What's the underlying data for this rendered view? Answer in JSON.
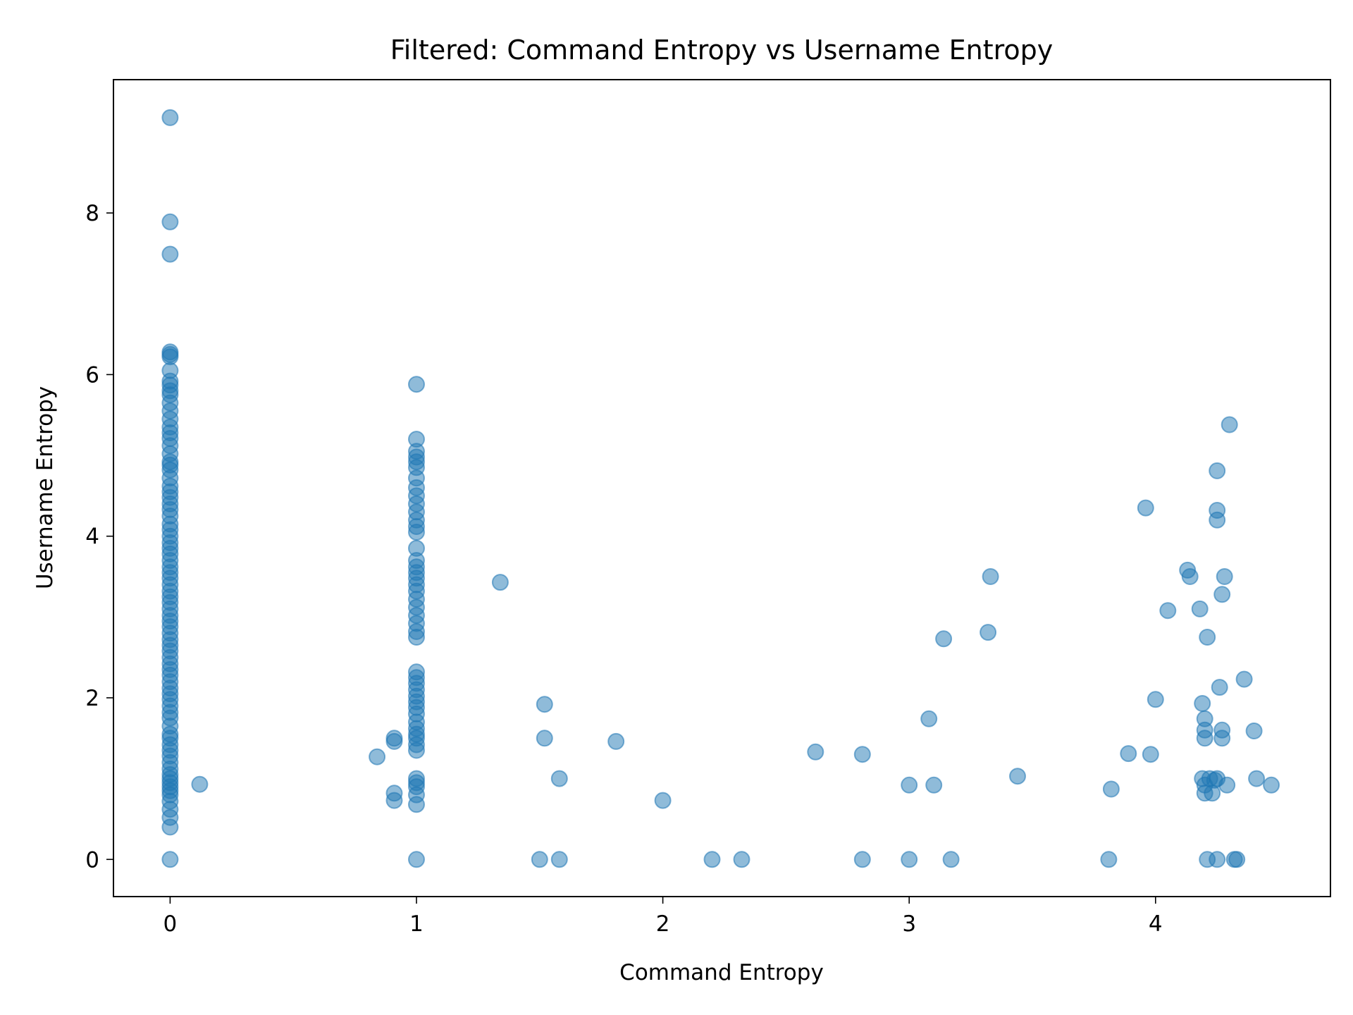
{
  "chart_data": {
    "type": "scatter",
    "title": "Filtered: Command Entropy vs Username Entropy",
    "xlabel": "Command Entropy",
    "ylabel": "Username Entropy",
    "xlim": [
      -0.23,
      4.71
    ],
    "ylim": [
      -0.46,
      9.65
    ],
    "xticks": [
      0,
      1,
      2,
      3,
      4
    ],
    "yticks": [
      0,
      2,
      4,
      6,
      8
    ],
    "grid": false,
    "marker_color": "#1f77b4",
    "marker_alpha": 0.5,
    "series": [
      {
        "points": [
          [
            0,
            9.18
          ],
          [
            0,
            7.89
          ],
          [
            0,
            7.49
          ],
          [
            0,
            6.28
          ],
          [
            0,
            6.25
          ],
          [
            0,
            6.22
          ],
          [
            0,
            6.05
          ],
          [
            0,
            5.92
          ],
          [
            0,
            5.87
          ],
          [
            0,
            5.8
          ],
          [
            0,
            5.75
          ],
          [
            0,
            5.65
          ],
          [
            0,
            5.55
          ],
          [
            0,
            5.45
          ],
          [
            0,
            5.35
          ],
          [
            0,
            5.28
          ],
          [
            0,
            5.21
          ],
          [
            0,
            5.12
          ],
          [
            0,
            5.02
          ],
          [
            0,
            4.92
          ],
          [
            0,
            4.88
          ],
          [
            0,
            4.82
          ],
          [
            0,
            4.72
          ],
          [
            0,
            4.62
          ],
          [
            0,
            4.55
          ],
          [
            0,
            4.48
          ],
          [
            0,
            4.4
          ],
          [
            0,
            4.33
          ],
          [
            0,
            4.25
          ],
          [
            0,
            4.15
          ],
          [
            0,
            4.08
          ],
          [
            0,
            4.0
          ],
          [
            0,
            3.92
          ],
          [
            0,
            3.85
          ],
          [
            0,
            3.78
          ],
          [
            0,
            3.7
          ],
          [
            0,
            3.62
          ],
          [
            0,
            3.55
          ],
          [
            0,
            3.48
          ],
          [
            0,
            3.4
          ],
          [
            0,
            3.32
          ],
          [
            0,
            3.25
          ],
          [
            0,
            3.18
          ],
          [
            0,
            3.1
          ],
          [
            0,
            3.02
          ],
          [
            0,
            2.95
          ],
          [
            0,
            2.88
          ],
          [
            0,
            2.8
          ],
          [
            0,
            2.72
          ],
          [
            0,
            2.65
          ],
          [
            0,
            2.58
          ],
          [
            0,
            2.5
          ],
          [
            0,
            2.42
          ],
          [
            0,
            2.35
          ],
          [
            0,
            2.28
          ],
          [
            0,
            2.2
          ],
          [
            0,
            2.12
          ],
          [
            0,
            2.05
          ],
          [
            0,
            1.98
          ],
          [
            0,
            1.9
          ],
          [
            0,
            1.82
          ],
          [
            0,
            1.75
          ],
          [
            0,
            1.65
          ],
          [
            0,
            1.55
          ],
          [
            0,
            1.5
          ],
          [
            0,
            1.42
          ],
          [
            0,
            1.35
          ],
          [
            0,
            1.28
          ],
          [
            0,
            1.2
          ],
          [
            0,
            1.12
          ],
          [
            0,
            1.05
          ],
          [
            0,
            1.0
          ],
          [
            0,
            0.95
          ],
          [
            0,
            0.9
          ],
          [
            0,
            0.85
          ],
          [
            0,
            0.8
          ],
          [
            0,
            0.72
          ],
          [
            0,
            0.62
          ],
          [
            0,
            0.52
          ],
          [
            0,
            0.4
          ],
          [
            0,
            0
          ],
          [
            0.12,
            0.93
          ],
          [
            0.84,
            1.27
          ],
          [
            0.91,
            1.5
          ],
          [
            0.91,
            1.46
          ],
          [
            0.91,
            0.82
          ],
          [
            0.91,
            0.73
          ],
          [
            1,
            5.88
          ],
          [
            1,
            5.2
          ],
          [
            1,
            5.05
          ],
          [
            1,
            4.98
          ],
          [
            1,
            4.92
          ],
          [
            1,
            4.85
          ],
          [
            1,
            4.72
          ],
          [
            1,
            4.6
          ],
          [
            1,
            4.5
          ],
          [
            1,
            4.4
          ],
          [
            1,
            4.3
          ],
          [
            1,
            4.2
          ],
          [
            1,
            4.12
          ],
          [
            1,
            4.05
          ],
          [
            1,
            3.85
          ],
          [
            1,
            3.7
          ],
          [
            1,
            3.62
          ],
          [
            1,
            3.55
          ],
          [
            1,
            3.48
          ],
          [
            1,
            3.4
          ],
          [
            1,
            3.32
          ],
          [
            1,
            3.22
          ],
          [
            1,
            3.12
          ],
          [
            1,
            3.02
          ],
          [
            1,
            2.92
          ],
          [
            1,
            2.82
          ],
          [
            1,
            2.75
          ],
          [
            1,
            2.32
          ],
          [
            1,
            2.25
          ],
          [
            1,
            2.18
          ],
          [
            1,
            2.1
          ],
          [
            1,
            2.02
          ],
          [
            1,
            1.95
          ],
          [
            1,
            1.88
          ],
          [
            1,
            1.8
          ],
          [
            1,
            1.7
          ],
          [
            1,
            1.62
          ],
          [
            1,
            1.55
          ],
          [
            1,
            1.5
          ],
          [
            1,
            1.42
          ],
          [
            1,
            1.35
          ],
          [
            1,
            1.0
          ],
          [
            1,
            0.95
          ],
          [
            1,
            0.9
          ],
          [
            1,
            0.8
          ],
          [
            1,
            0.68
          ],
          [
            1,
            0
          ],
          [
            1.34,
            3.43
          ],
          [
            1.5,
            0
          ],
          [
            1.52,
            1.92
          ],
          [
            1.52,
            1.5
          ],
          [
            1.58,
            1.0
          ],
          [
            1.58,
            0
          ],
          [
            1.81,
            1.46
          ],
          [
            2.0,
            0.73
          ],
          [
            2.2,
            0
          ],
          [
            2.32,
            0
          ],
          [
            2.62,
            1.33
          ],
          [
            2.81,
            1.3
          ],
          [
            2.81,
            0
          ],
          [
            3.0,
            0.92
          ],
          [
            3.0,
            0
          ],
          [
            3.08,
            1.74
          ],
          [
            3.1,
            0.92
          ],
          [
            3.14,
            2.73
          ],
          [
            3.17,
            0
          ],
          [
            3.32,
            2.81
          ],
          [
            3.33,
            3.5
          ],
          [
            3.44,
            1.03
          ],
          [
            3.81,
            0
          ],
          [
            3.82,
            0.87
          ],
          [
            3.89,
            1.31
          ],
          [
            3.96,
            4.35
          ],
          [
            3.98,
            1.3
          ],
          [
            4.0,
            1.98
          ],
          [
            4.05,
            3.08
          ],
          [
            4.13,
            3.58
          ],
          [
            4.14,
            3.5
          ],
          [
            4.18,
            3.1
          ],
          [
            4.19,
            1.93
          ],
          [
            4.19,
            1.0
          ],
          [
            4.2,
            1.74
          ],
          [
            4.2,
            1.6
          ],
          [
            4.2,
            1.5
          ],
          [
            4.2,
            0.92
          ],
          [
            4.2,
            0.82
          ],
          [
            4.21,
            2.75
          ],
          [
            4.21,
            0
          ],
          [
            4.22,
            1.0
          ],
          [
            4.23,
            0.82
          ],
          [
            4.24,
            0.98
          ],
          [
            4.25,
            4.81
          ],
          [
            4.25,
            4.32
          ],
          [
            4.25,
            4.2
          ],
          [
            4.25,
            1.0
          ],
          [
            4.25,
            0
          ],
          [
            4.26,
            2.13
          ],
          [
            4.27,
            3.28
          ],
          [
            4.27,
            1.6
          ],
          [
            4.27,
            1.5
          ],
          [
            4.28,
            3.5
          ],
          [
            4.29,
            0.92
          ],
          [
            4.3,
            5.38
          ],
          [
            4.32,
            0
          ],
          [
            4.33,
            0
          ],
          [
            4.36,
            2.23
          ],
          [
            4.4,
            1.59
          ],
          [
            4.41,
            1.0
          ],
          [
            4.47,
            0.92
          ]
        ]
      }
    ]
  }
}
